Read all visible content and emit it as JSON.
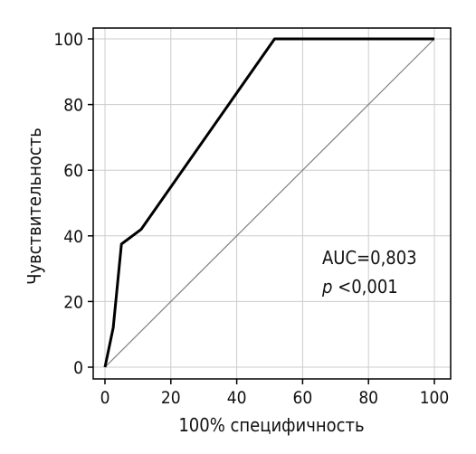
{
  "chart_data": {
    "type": "line",
    "xlabel": "100% специфичность",
    "ylabel": "Чувствительность",
    "xlim": [
      0,
      100
    ],
    "ylim": [
      0,
      100
    ],
    "x_ticks": [
      "0",
      "20",
      "40",
      "60",
      "80",
      "100"
    ],
    "y_ticks": [
      "0",
      "20",
      "40",
      "60",
      "80",
      "100"
    ],
    "grid": true,
    "series": [
      {
        "values_x": [
          0,
          2.5,
          5,
          11,
          51.5,
          100
        ],
        "values_y": [
          0,
          12,
          37.5,
          42,
          100,
          100
        ],
        "color": "#000000"
      },
      {
        "values_x": [
          0,
          100
        ],
        "values_y": [
          0,
          100
        ],
        "color": "#808080"
      }
    ],
    "annotations": {
      "auc": "AUC=0,803",
      "p_symbol": "p",
      "p_value": " <0,001"
    }
  }
}
